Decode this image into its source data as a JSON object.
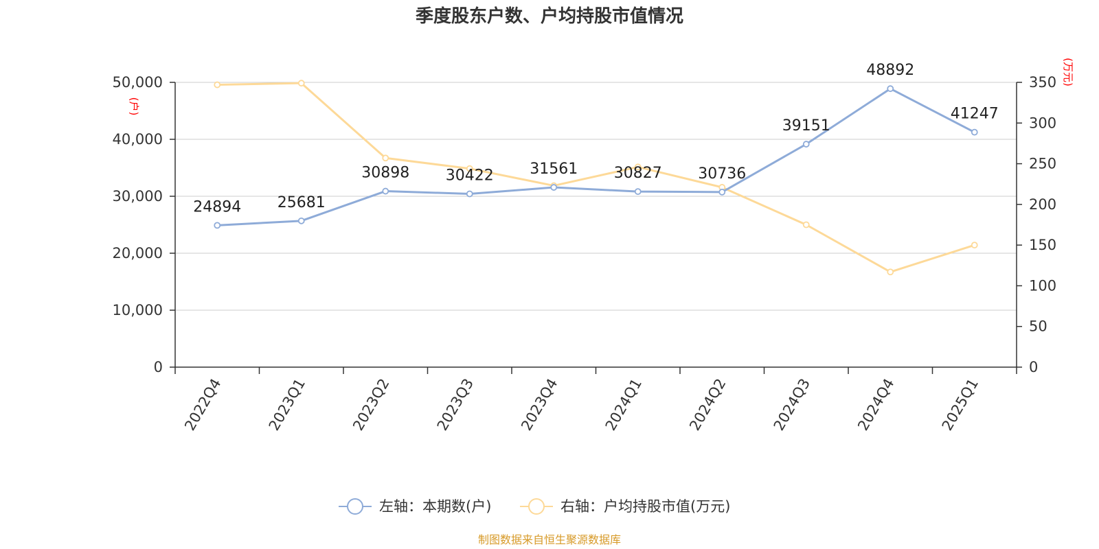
{
  "title": "季度股东户数、户均持股市值情况",
  "source_text": "制图数据来自恒生聚源数据库",
  "colors": {
    "series_left": "#8eabd8",
    "series_right": "#fdd998",
    "unit_text": "#ff0000",
    "source_text": "#d79a28",
    "grid": "#cccccc",
    "axis": "#333333"
  },
  "chart_data": {
    "type": "line",
    "categories": [
      "2022Q4",
      "2023Q1",
      "2023Q2",
      "2023Q3",
      "2023Q4",
      "2024Q1",
      "2024Q2",
      "2024Q3",
      "2024Q4",
      "2025Q1"
    ],
    "series": [
      {
        "name": "左轴：本期数(户)",
        "axis": "left",
        "values": [
          24894,
          25681,
          30898,
          30422,
          31561,
          30827,
          30736,
          39151,
          48892,
          41247
        ],
        "data_labels": [
          "24894",
          "25681",
          "30898",
          "30422",
          "31561",
          "30827",
          "30736",
          "39151",
          "48892",
          "41247"
        ]
      },
      {
        "name": "右轴：户均持股市值(万元)",
        "axis": "right",
        "values": [
          347,
          349,
          257,
          244,
          223,
          246,
          221,
          175,
          117,
          150
        ]
      }
    ],
    "left_axis": {
      "unit": "(户)",
      "range": [
        0,
        50000
      ],
      "ticks": [
        "0",
        "10,000",
        "20,000",
        "30,000",
        "40,000",
        "50,000"
      ]
    },
    "right_axis": {
      "unit": "(万元)",
      "range": [
        0,
        350
      ],
      "ticks": [
        "0",
        "50",
        "100",
        "150",
        "200",
        "250",
        "300",
        "350"
      ]
    },
    "grid": true,
    "legend_position": "bottom-center"
  }
}
